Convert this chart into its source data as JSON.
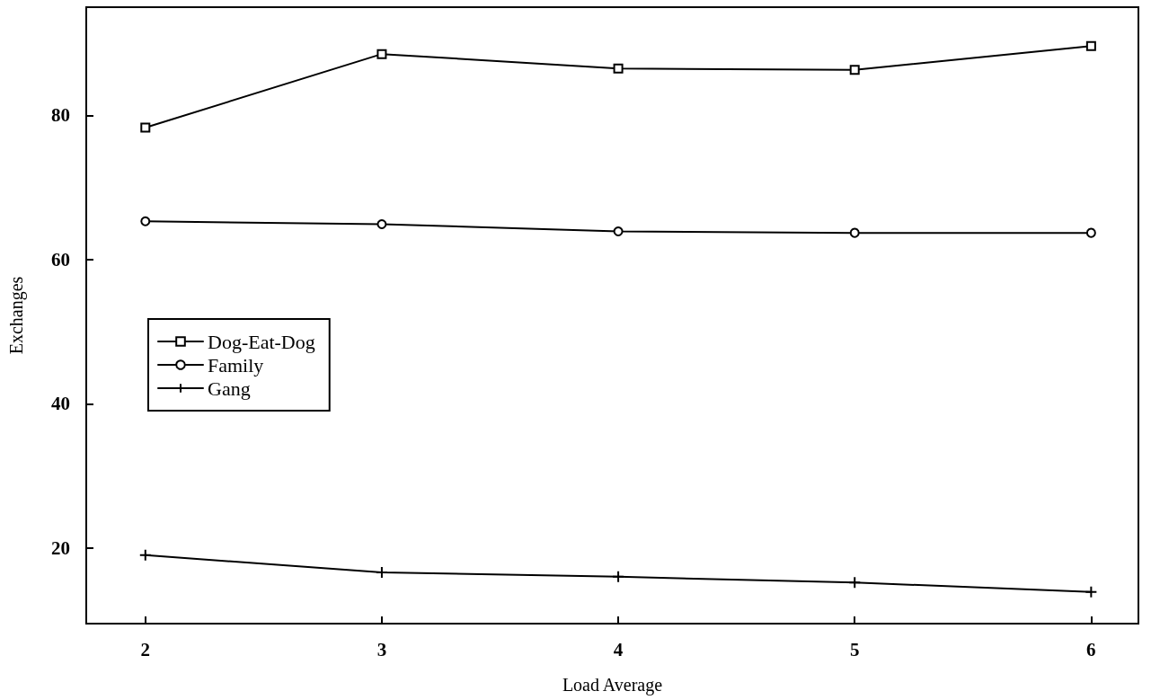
{
  "chart_data": {
    "type": "line",
    "xlabel": "Load Average",
    "ylabel": "Exchanges",
    "x": [
      2,
      3,
      4,
      5,
      6
    ],
    "series": [
      {
        "name": "Dog-Eat-Dog",
        "color": "#000000",
        "marker": "square",
        "values": [
          78.3,
          88.5,
          86.5,
          86.3,
          89.6
        ]
      },
      {
        "name": "Family",
        "color": "#000000",
        "marker": "circle",
        "values": [
          65.3,
          64.9,
          63.9,
          63.7,
          63.7
        ]
      },
      {
        "name": "Gang",
        "color": "#000000",
        "marker": "cross",
        "values": [
          19.0,
          16.6,
          16.0,
          15.2,
          13.9
        ]
      }
    ],
    "xlim": [
      1.75,
      6.2
    ],
    "xticks": [
      2,
      3,
      4,
      5,
      6
    ],
    "ylim": [
      9.5,
      95
    ],
    "yticks": [
      20,
      40,
      60,
      80
    ],
    "grid": false,
    "legend": "left",
    "line_style": "solid"
  }
}
